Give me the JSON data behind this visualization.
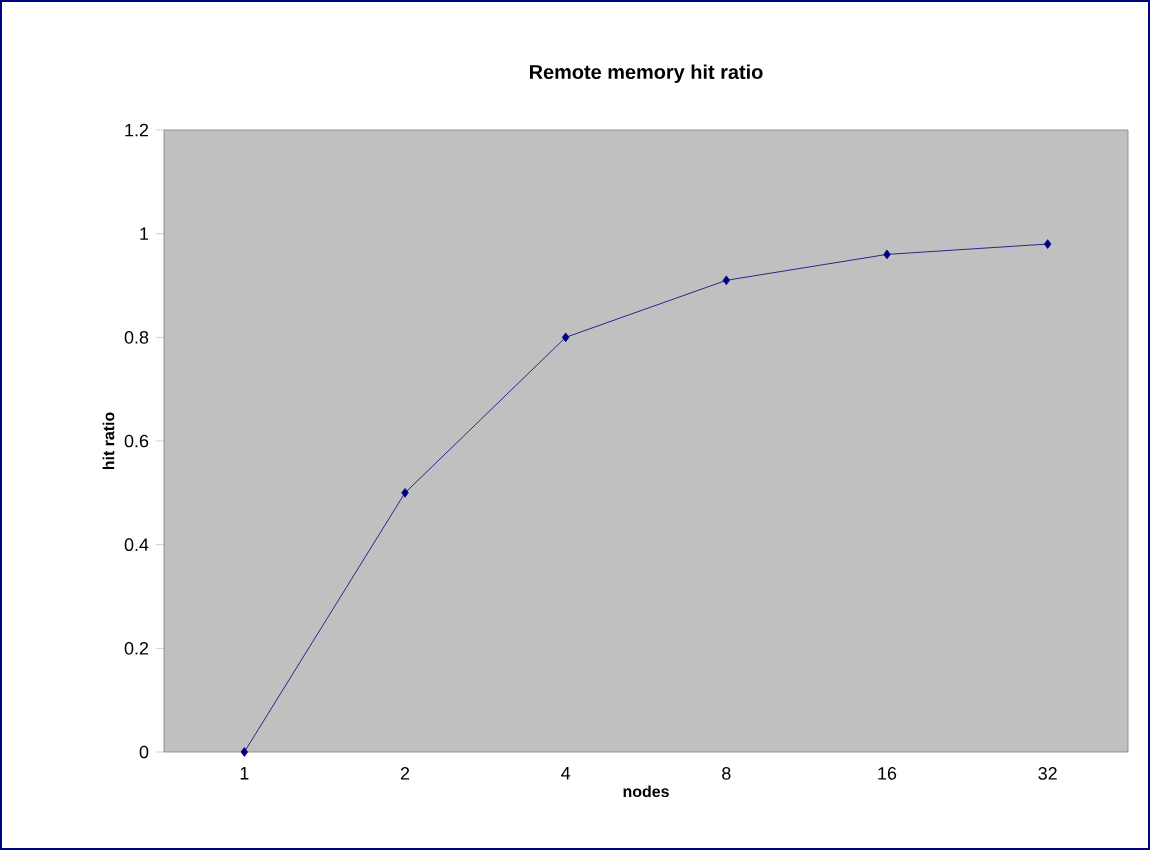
{
  "chart_data": {
    "type": "line",
    "title": "Remote memory hit ratio",
    "xlabel": "nodes",
    "ylabel": "hit ratio",
    "categories": [
      "1",
      "2",
      "4",
      "8",
      "16",
      "32"
    ],
    "series": [
      {
        "color": "#000080",
        "values": [
          0,
          0.5,
          0.8,
          0.91,
          0.96,
          0.98
        ]
      }
    ],
    "ylim": [
      0,
      1.2
    ],
    "yticks": [
      0,
      0.2,
      0.4,
      0.6,
      0.8,
      1,
      1.2
    ],
    "grid": false,
    "marker": "diamond",
    "line_style": "solid"
  }
}
